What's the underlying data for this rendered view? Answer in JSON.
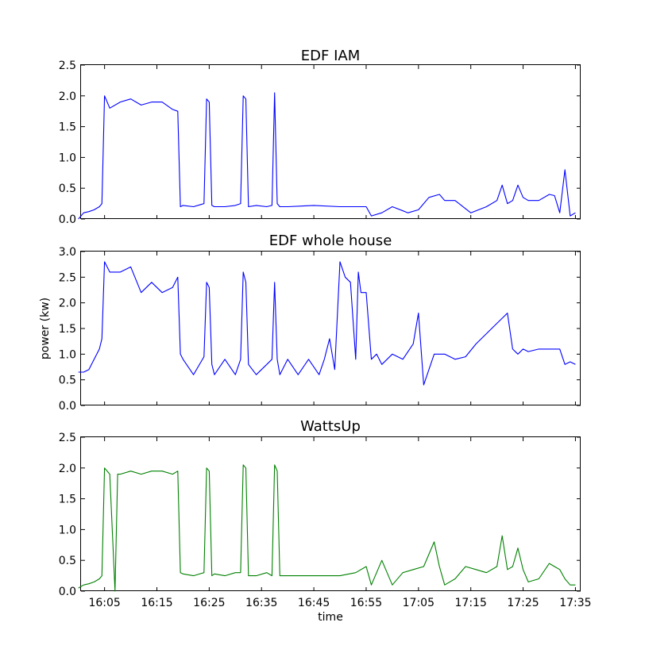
{
  "chart_data": [
    {
      "type": "line",
      "title": "EDF IAM",
      "xlabel": "",
      "ylabel": "",
      "ylim": [
        0,
        2.5
      ],
      "yticks": [
        "0.0",
        "0.5",
        "1.0",
        "1.5",
        "2.0",
        "2.5"
      ],
      "xticks": [],
      "grid": false,
      "legend": "none",
      "color": "#0000ff",
      "series": [
        {
          "x": [
            "16:00",
            "16:01",
            "16:02",
            "16:03",
            "16:04",
            "16:04:30",
            "16:05",
            "16:06",
            "16:08",
            "16:10",
            "16:12",
            "16:14",
            "16:16",
            "16:18",
            "16:19",
            "16:19:30",
            "16:20",
            "16:22",
            "16:24",
            "16:24:30",
            "16:25",
            "16:25:30",
            "16:26",
            "16:28",
            "16:30",
            "16:31",
            "16:31:30",
            "16:32",
            "16:32:30",
            "16:34",
            "16:36",
            "16:37",
            "16:37:30",
            "16:38",
            "16:38:30",
            "16:40",
            "16:45",
            "16:50",
            "16:55",
            "16:56",
            "16:58",
            "17:00",
            "17:03",
            "17:05",
            "17:07",
            "17:09",
            "17:10",
            "17:12",
            "17:15",
            "17:18",
            "17:20",
            "17:21",
            "17:22",
            "17:23",
            "17:24",
            "17:25",
            "17:26",
            "17:28",
            "17:30",
            "17:31",
            "17:32",
            "17:33",
            "17:34",
            "17:35"
          ],
          "y": [
            0.0,
            0.1,
            0.12,
            0.15,
            0.2,
            0.25,
            2.0,
            1.8,
            1.9,
            1.95,
            1.85,
            1.9,
            1.9,
            1.78,
            1.75,
            0.2,
            0.22,
            0.2,
            0.25,
            1.95,
            1.9,
            0.22,
            0.2,
            0.2,
            0.22,
            0.25,
            2.0,
            1.95,
            0.2,
            0.22,
            0.2,
            0.22,
            2.05,
            0.25,
            0.2,
            0.2,
            0.22,
            0.2,
            0.2,
            0.05,
            0.1,
            0.2,
            0.1,
            0.15,
            0.35,
            0.4,
            0.3,
            0.3,
            0.1,
            0.2,
            0.3,
            0.55,
            0.25,
            0.3,
            0.55,
            0.35,
            0.3,
            0.3,
            0.4,
            0.38,
            0.1,
            0.8,
            0.05,
            0.1
          ]
        }
      ]
    },
    {
      "type": "line",
      "title": "EDF whole house",
      "xlabel": "",
      "ylabel": "power (kw)",
      "ylim": [
        0,
        3.0
      ],
      "yticks": [
        "0.0",
        "0.5",
        "1.0",
        "1.5",
        "2.0",
        "2.5",
        "3.0"
      ],
      "xticks": [],
      "grid": false,
      "legend": "none",
      "color": "#0000ff",
      "series": [
        {
          "x": [
            "16:00",
            "16:01",
            "16:02",
            "16:03",
            "16:04",
            "16:04:30",
            "16:05",
            "16:06",
            "16:08",
            "16:10",
            "16:12",
            "16:14",
            "16:16",
            "16:18",
            "16:19",
            "16:19:30",
            "16:20",
            "16:22",
            "16:24",
            "16:24:30",
            "16:25",
            "16:25:30",
            "16:26",
            "16:28",
            "16:30",
            "16:31",
            "16:31:30",
            "16:32",
            "16:32:30",
            "16:34",
            "16:36",
            "16:37",
            "16:37:30",
            "16:38",
            "16:38:30",
            "16:40",
            "16:42",
            "16:44",
            "16:46",
            "16:47",
            "16:48",
            "16:49",
            "16:50",
            "16:51",
            "16:52",
            "16:53",
            "16:53:30",
            "16:54",
            "16:55",
            "16:56",
            "16:57",
            "16:58",
            "17:00",
            "17:02",
            "17:04",
            "17:05",
            "17:06",
            "17:08",
            "17:10",
            "17:12",
            "17:14",
            "17:16",
            "17:18",
            "17:20",
            "17:22",
            "17:23",
            "17:24",
            "17:25",
            "17:26",
            "17:28",
            "17:30",
            "17:32",
            "17:33",
            "17:34",
            "17:35"
          ],
          "y": [
            0.65,
            0.65,
            0.7,
            0.9,
            1.1,
            1.3,
            2.8,
            2.6,
            2.6,
            2.7,
            2.2,
            2.4,
            2.2,
            2.3,
            2.5,
            1.0,
            0.9,
            0.6,
            0.95,
            2.4,
            2.3,
            0.8,
            0.6,
            0.9,
            0.6,
            0.9,
            2.6,
            2.4,
            0.8,
            0.6,
            0.8,
            0.9,
            2.4,
            0.9,
            0.6,
            0.9,
            0.6,
            0.9,
            0.6,
            0.9,
            1.3,
            0.7,
            2.8,
            2.5,
            2.4,
            0.9,
            2.6,
            2.2,
            2.2,
            0.9,
            1.0,
            0.8,
            1.0,
            0.9,
            1.2,
            1.8,
            0.4,
            1.0,
            1.0,
            0.9,
            0.95,
            1.2,
            1.4,
            1.6,
            1.8,
            1.1,
            1.0,
            1.1,
            1.05,
            1.1,
            1.1,
            1.1,
            0.8,
            0.85,
            0.8
          ]
        }
      ]
    },
    {
      "type": "line",
      "title": "WattsUp",
      "xlabel": "time",
      "ylabel": "",
      "ylim": [
        0,
        2.5
      ],
      "yticks": [
        "0.0",
        "0.5",
        "1.0",
        "1.5",
        "2.0",
        "2.5"
      ],
      "xticks": [
        "16:05",
        "16:15",
        "16:25",
        "16:35",
        "16:45",
        "16:55",
        "17:05",
        "17:15",
        "17:25",
        "17:35"
      ],
      "grid": false,
      "legend": "none",
      "color": "#008000",
      "series": [
        {
          "x": [
            "16:00",
            "16:01",
            "16:02",
            "16:03",
            "16:04",
            "16:04:30",
            "16:05",
            "16:06",
            "16:07",
            "16:07:30",
            "16:08",
            "16:10",
            "16:12",
            "16:14",
            "16:16",
            "16:18",
            "16:19",
            "16:19:30",
            "16:20",
            "16:22",
            "16:24",
            "16:24:30",
            "16:25",
            "16:25:30",
            "16:26",
            "16:28",
            "16:30",
            "16:31",
            "16:31:30",
            "16:32",
            "16:32:30",
            "16:34",
            "16:36",
            "16:37",
            "16:37:30",
            "16:38",
            "16:38:30",
            "16:40",
            "16:45",
            "16:50",
            "16:53",
            "16:55",
            "16:56",
            "16:58",
            "17:00",
            "17:02",
            "17:04",
            "17:06",
            "17:08",
            "17:09",
            "17:10",
            "17:12",
            "17:14",
            "17:16",
            "17:18",
            "17:20",
            "17:21",
            "17:22",
            "17:23",
            "17:24",
            "17:25",
            "17:26",
            "17:28",
            "17:30",
            "17:31",
            "17:32",
            "17:33",
            "17:34",
            "17:35"
          ],
          "y": [
            0.05,
            0.1,
            0.12,
            0.15,
            0.2,
            0.25,
            2.0,
            1.9,
            0.0,
            1.9,
            1.9,
            1.95,
            1.9,
            1.95,
            1.95,
            1.9,
            1.95,
            0.3,
            0.28,
            0.25,
            0.3,
            2.0,
            1.95,
            0.25,
            0.28,
            0.25,
            0.3,
            0.3,
            2.05,
            2.0,
            0.25,
            0.25,
            0.3,
            0.25,
            2.05,
            1.95,
            0.25,
            0.25,
            0.25,
            0.25,
            0.3,
            0.4,
            0.1,
            0.5,
            0.1,
            0.3,
            0.35,
            0.4,
            0.8,
            0.4,
            0.1,
            0.2,
            0.4,
            0.35,
            0.3,
            0.4,
            0.9,
            0.35,
            0.4,
            0.7,
            0.35,
            0.15,
            0.2,
            0.45,
            0.4,
            0.35,
            0.2,
            0.1,
            0.1
          ]
        }
      ]
    }
  ]
}
